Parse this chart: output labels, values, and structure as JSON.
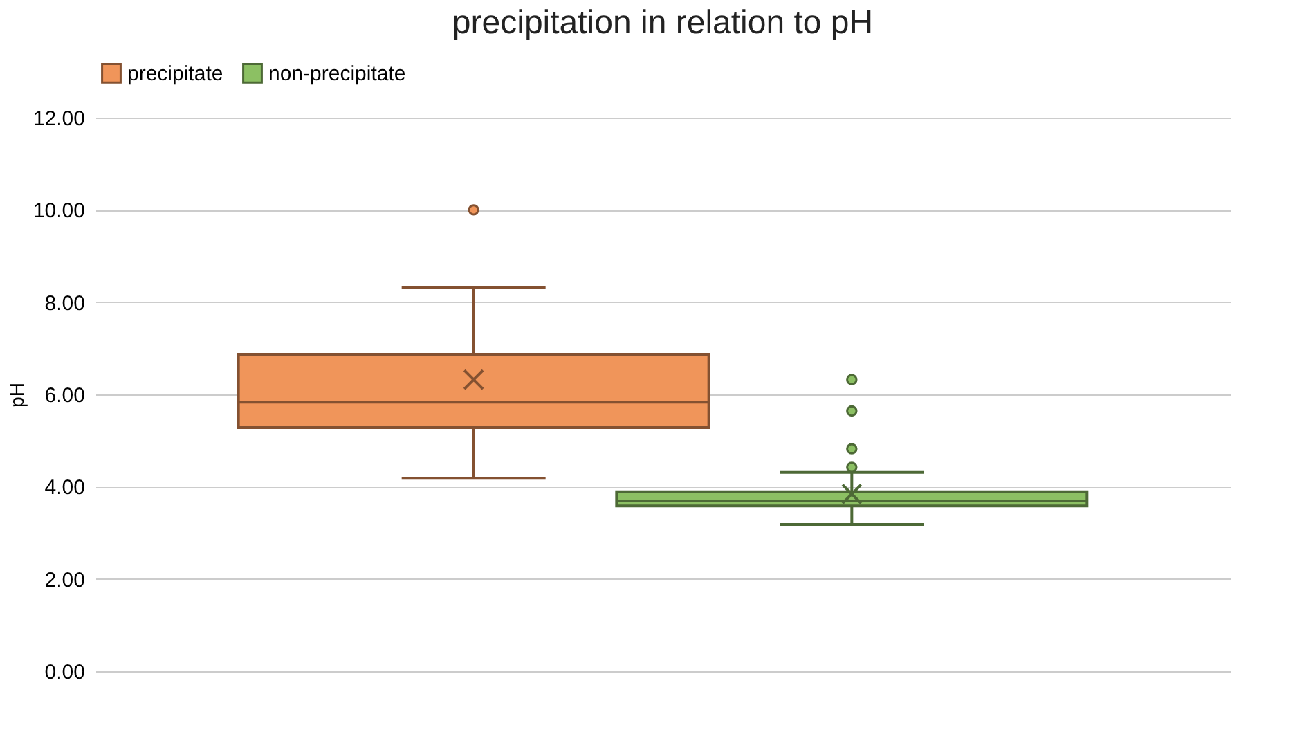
{
  "chart_data": {
    "type": "box",
    "title": "precipitation in relation to pH",
    "ylabel": "pH",
    "categories": [
      null
    ],
    "series": [
      {
        "name": "precipitate",
        "color": "#f0955a",
        "boxes": [
          {
            "low": 4.18,
            "q1": 5.28,
            "median": 5.83,
            "q3": 6.87,
            "high": 8.31,
            "mean": 6.32,
            "outliers": [
              10.0
            ]
          }
        ]
      },
      {
        "name": "non-precipitate",
        "color": "#8cc063",
        "boxes": [
          {
            "low": 3.18,
            "q1": 3.58,
            "median": 3.69,
            "q3": 3.89,
            "high": 4.31,
            "mean": 3.84,
            "outliers": [
              4.42,
              4.82,
              5.64,
              6.32
            ]
          }
        ]
      }
    ],
    "ylim": [
      0,
      12
    ],
    "yticks": [
      {
        "value": 0,
        "label": "0.00"
      },
      {
        "value": 2,
        "label": "2.00"
      },
      {
        "value": 4,
        "label": "4.00"
      },
      {
        "value": 6,
        "label": "6.00"
      },
      {
        "value": 8,
        "label": "8.00"
      },
      {
        "value": 10,
        "label": "10.00"
      },
      {
        "value": 12,
        "label": "12.00"
      }
    ],
    "grid": "y",
    "legend": "top",
    "tick_labels": "y"
  }
}
